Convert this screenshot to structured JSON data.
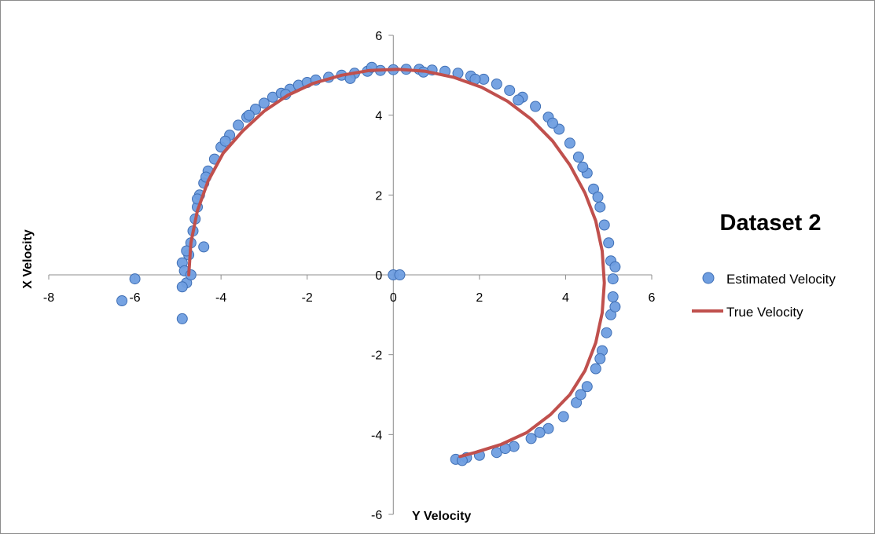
{
  "chart_data": {
    "type": "scatter",
    "title": "Dataset 2",
    "xlabel": "Y Velocity",
    "ylabel": "X Velocity",
    "xlim": [
      -8,
      6
    ],
    "ylim": [
      -6,
      6
    ],
    "xticks": [
      "-8",
      "-6",
      "-4",
      "-2",
      "0",
      "2",
      "4",
      "6"
    ],
    "yticks": [
      "-6",
      "-4",
      "-2",
      "0",
      "2",
      "4",
      "6"
    ],
    "grid": false,
    "legend_position": "right",
    "series": [
      {
        "name": "Estimated Velocity",
        "marker": "circle",
        "color": "#6f9ee0",
        "edge_color": "#3f6fb5",
        "points": [
          [
            -4.9,
            0.3
          ],
          [
            -4.85,
            0.1
          ],
          [
            -4.8,
            -0.2
          ],
          [
            -4.75,
            0.5
          ],
          [
            -4.7,
            0.8
          ],
          [
            -4.8,
            0.6
          ],
          [
            -4.65,
            1.1
          ],
          [
            -4.6,
            1.4
          ],
          [
            -4.55,
            1.7
          ],
          [
            -4.5,
            2.0
          ],
          [
            -4.4,
            2.3
          ],
          [
            -4.3,
            2.6
          ],
          [
            -4.15,
            2.9
          ],
          [
            -4.0,
            3.2
          ],
          [
            -3.8,
            3.5
          ],
          [
            -3.6,
            3.75
          ],
          [
            -3.4,
            3.95
          ],
          [
            -3.2,
            4.15
          ],
          [
            -3.0,
            4.3
          ],
          [
            -2.8,
            4.45
          ],
          [
            -2.6,
            4.55
          ],
          [
            -2.4,
            4.65
          ],
          [
            -2.2,
            4.75
          ],
          [
            -2.0,
            4.82
          ],
          [
            -1.8,
            4.88
          ],
          [
            -1.5,
            4.95
          ],
          [
            -1.2,
            5.0
          ],
          [
            -0.9,
            5.05
          ],
          [
            -0.6,
            5.1
          ],
          [
            -0.3,
            5.12
          ],
          [
            0.0,
            5.14
          ],
          [
            0.3,
            5.15
          ],
          [
            0.6,
            5.15
          ],
          [
            0.9,
            5.13
          ],
          [
            1.2,
            5.1
          ],
          [
            1.5,
            5.05
          ],
          [
            1.8,
            4.98
          ],
          [
            2.1,
            4.9
          ],
          [
            2.4,
            4.78
          ],
          [
            2.7,
            4.62
          ],
          [
            3.0,
            4.45
          ],
          [
            3.3,
            4.22
          ],
          [
            3.6,
            3.95
          ],
          [
            3.85,
            3.65
          ],
          [
            4.1,
            3.3
          ],
          [
            4.3,
            2.95
          ],
          [
            4.5,
            2.55
          ],
          [
            4.65,
            2.15
          ],
          [
            4.8,
            1.7
          ],
          [
            4.9,
            1.25
          ],
          [
            5.0,
            0.8
          ],
          [
            5.05,
            0.35
          ],
          [
            5.1,
            -0.1
          ],
          [
            5.1,
            -0.55
          ],
          [
            5.05,
            -1.0
          ],
          [
            4.95,
            -1.45
          ],
          [
            4.85,
            -1.9
          ],
          [
            4.7,
            -2.35
          ],
          [
            4.5,
            -2.8
          ],
          [
            4.25,
            -3.2
          ],
          [
            3.95,
            -3.55
          ],
          [
            3.6,
            -3.85
          ],
          [
            3.2,
            -4.1
          ],
          [
            2.8,
            -4.3
          ],
          [
            2.4,
            -4.45
          ],
          [
            2.0,
            -4.52
          ],
          [
            1.7,
            -4.58
          ],
          [
            1.45,
            -4.62
          ],
          [
            -4.55,
            1.9
          ],
          [
            -4.35,
            2.45
          ],
          [
            -3.9,
            3.35
          ],
          [
            -3.35,
            4.0
          ],
          [
            -2.5,
            4.52
          ],
          [
            -1.0,
            4.92
          ],
          [
            -0.5,
            5.2
          ],
          [
            0.7,
            5.08
          ],
          [
            1.9,
            4.9
          ],
          [
            2.9,
            4.38
          ],
          [
            3.7,
            3.8
          ],
          [
            4.4,
            2.7
          ],
          [
            4.75,
            1.95
          ],
          [
            5.15,
            0.2
          ],
          [
            5.15,
            -0.8
          ],
          [
            4.8,
            -2.1
          ],
          [
            4.35,
            -3.0
          ],
          [
            3.4,
            -3.95
          ],
          [
            2.6,
            -4.35
          ],
          [
            1.6,
            -4.65
          ],
          [
            -4.7,
            0.0
          ],
          [
            -4.9,
            -0.3
          ],
          [
            -4.4,
            0.7
          ],
          [
            -6.0,
            -0.1
          ],
          [
            -6.3,
            -0.65
          ],
          [
            -4.9,
            -1.1
          ],
          [
            0.0,
            0.0
          ],
          [
            0.15,
            0.0
          ]
        ]
      },
      {
        "name": "True Velocity",
        "marker": "line",
        "color": "#c0504d",
        "points": [
          [
            -4.75,
            0.0
          ],
          [
            -4.7,
            0.8
          ],
          [
            -4.55,
            1.6
          ],
          [
            -4.3,
            2.35
          ],
          [
            -3.95,
            3.05
          ],
          [
            -3.5,
            3.6
          ],
          [
            -3.0,
            4.1
          ],
          [
            -2.45,
            4.5
          ],
          [
            -1.85,
            4.8
          ],
          [
            -1.2,
            5.0
          ],
          [
            -0.55,
            5.12
          ],
          [
            0.1,
            5.15
          ],
          [
            0.75,
            5.1
          ],
          [
            1.4,
            4.95
          ],
          [
            2.05,
            4.7
          ],
          [
            2.65,
            4.35
          ],
          [
            3.2,
            3.9
          ],
          [
            3.7,
            3.35
          ],
          [
            4.1,
            2.75
          ],
          [
            4.45,
            2.05
          ],
          [
            4.7,
            1.35
          ],
          [
            4.85,
            0.6
          ],
          [
            4.9,
            -0.2
          ],
          [
            4.85,
            -0.95
          ],
          [
            4.7,
            -1.7
          ],
          [
            4.45,
            -2.4
          ],
          [
            4.1,
            -3.0
          ],
          [
            3.65,
            -3.5
          ],
          [
            3.1,
            -3.95
          ],
          [
            2.5,
            -4.25
          ],
          [
            1.9,
            -4.45
          ],
          [
            1.55,
            -4.55
          ]
        ]
      }
    ]
  },
  "legend": {
    "items": [
      {
        "label": "Estimated Velocity",
        "color": "#6f9ee0"
      },
      {
        "label": "True Velocity",
        "color": "#c0504d"
      }
    ]
  }
}
